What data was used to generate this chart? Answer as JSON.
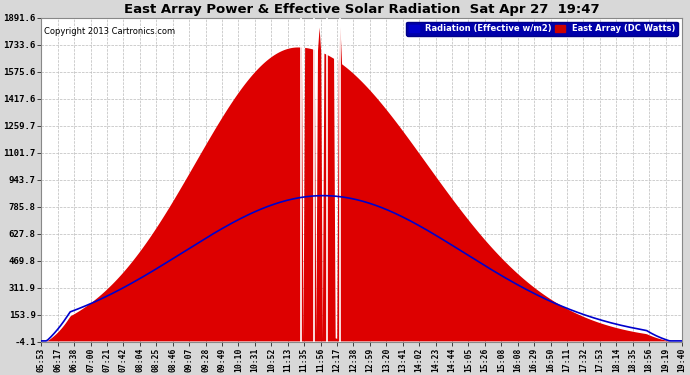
{
  "title": "East Array Power & Effective Solar Radiation  Sat Apr 27  19:47",
  "copyright": "Copyright 2013 Cartronics.com",
  "legend_radiation": "Radiation (Effective w/m2)",
  "legend_array": "East Array (DC Watts)",
  "yticks": [
    -4.1,
    153.9,
    311.9,
    469.8,
    627.8,
    785.8,
    943.7,
    1101.7,
    1259.7,
    1417.6,
    1575.6,
    1733.6,
    1891.6
  ],
  "ymin": -4.1,
  "ymax": 1891.6,
  "background_color": "#d8d8d8",
  "plot_bg_color": "#ffffff",
  "bar_color": "#dd0000",
  "line_color": "#0000cc",
  "grid_color": "#bbbbbb",
  "title_color": "#000000",
  "xtick_labels": [
    "05:53",
    "06:17",
    "06:38",
    "07:00",
    "07:21",
    "07:42",
    "08:04",
    "08:25",
    "08:46",
    "09:07",
    "09:28",
    "09:49",
    "10:10",
    "10:31",
    "10:52",
    "11:13",
    "11:35",
    "11:56",
    "12:17",
    "12:38",
    "12:59",
    "13:20",
    "13:41",
    "14:02",
    "14:23",
    "14:44",
    "15:05",
    "15:26",
    "15:08",
    "16:08",
    "16:29",
    "16:50",
    "17:11",
    "17:32",
    "17:53",
    "18:14",
    "18:35",
    "18:56",
    "19:19",
    "19:40"
  ],
  "num_points": 400
}
